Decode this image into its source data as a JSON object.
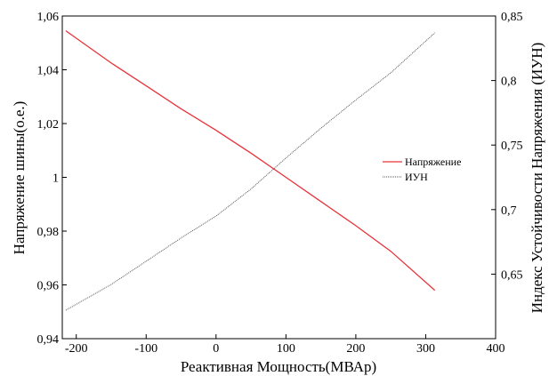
{
  "chart_data": {
    "type": "line",
    "xlabel": "Реактивная Мощность(МВАр)",
    "ylabel_left": "Напряжение шины(о.е.)",
    "ylabel_right": "Индекс Устойчивости Напряжения (ИУН)",
    "xlim": [
      -220,
      400
    ],
    "ylim_left": [
      0.94,
      1.06
    ],
    "ylim_right": [
      0.6,
      0.85
    ],
    "x_ticks": [
      "-200",
      "-100",
      "0",
      "100",
      "200",
      "300",
      "400"
    ],
    "x_tick_values": [
      -200,
      -100,
      0,
      100,
      200,
      300,
      400
    ],
    "y_left_ticks": [
      "0,94",
      "0,96",
      "0,98",
      "1",
      "1,02",
      "1,04",
      "1,06"
    ],
    "y_left_tick_values": [
      0.94,
      0.96,
      0.98,
      1.0,
      1.02,
      1.04,
      1.06
    ],
    "y_right_ticks": [
      "0,65",
      "0,7",
      "0,75",
      "0,8",
      "0,85"
    ],
    "y_right_tick_values": [
      0.65,
      0.7,
      0.75,
      0.8,
      0.85
    ],
    "grid": false,
    "legend_position": "right-center",
    "series": [
      {
        "name": "Напряжение",
        "axis": "left",
        "color": "#e8333a",
        "style": "solid",
        "x": [
          -215,
          -150,
          -100,
          -50,
          0,
          50,
          100,
          150,
          200,
          250,
          313
        ],
        "y": [
          1.0545,
          1.0425,
          1.034,
          1.0255,
          1.0175,
          1.009,
          1.0,
          0.991,
          0.982,
          0.9725,
          0.958
        ]
      },
      {
        "name": "ИУН",
        "axis": "right",
        "color": "#555555",
        "style": "dotted",
        "x": [
          -215,
          -150,
          -100,
          -50,
          0,
          50,
          100,
          150,
          200,
          250,
          313
        ],
        "y": [
          0.622,
          0.642,
          0.66,
          0.678,
          0.695,
          0.716,
          0.74,
          0.763,
          0.785,
          0.806,
          0.837
        ]
      }
    ]
  }
}
